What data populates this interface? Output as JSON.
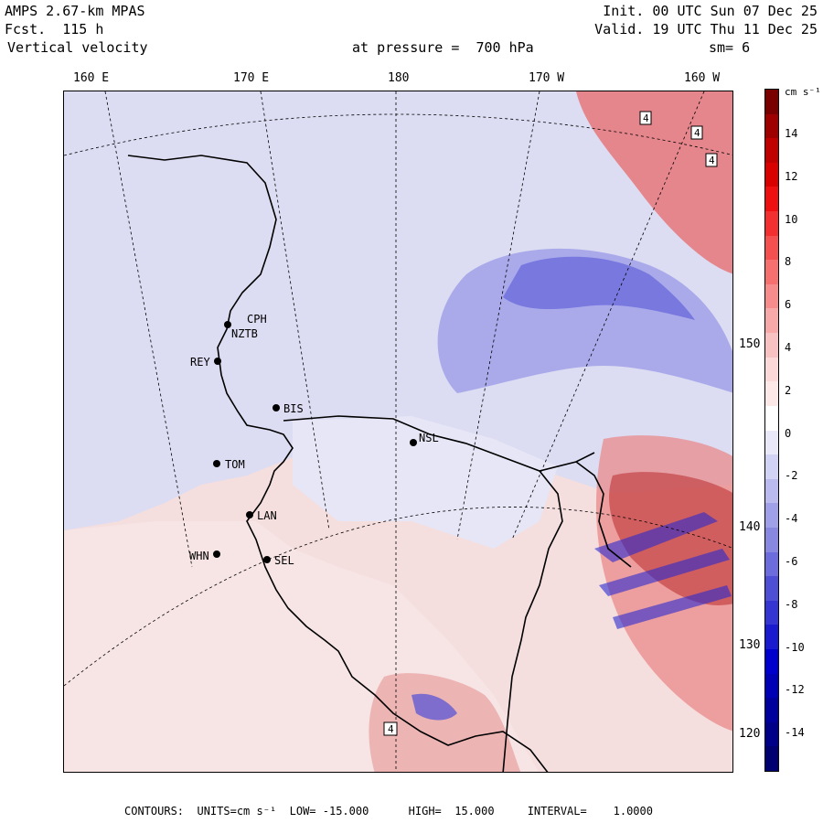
{
  "header": {
    "model": "AMPS 2.67-km MPAS",
    "forecast": "Fcst.  115 h",
    "field": "Vertical velocity",
    "init": "Init. 00 UTC Sun 07 Dec 25",
    "valid": "Valid. 19 UTC Thu 11 Dec 25",
    "pressure": "at pressure =  700 hPa",
    "smoothing": "sm= 6"
  },
  "map": {
    "lon_labels": [
      "160 E",
      "170 E",
      "180",
      "170 W",
      "160 W"
    ],
    "lat_labels": [
      "150 W",
      "140 W",
      "130 W",
      "120 W"
    ],
    "stations": [
      "CPH",
      "NZTB",
      "REY",
      "BIS",
      "TOM",
      "LAN",
      "WHN",
      "SEL",
      "NSL"
    ],
    "contour_box_labels": [
      "4",
      "4",
      "4",
      "4"
    ]
  },
  "colorbar": {
    "units": "cm s⁻¹",
    "ticks": [
      "14",
      "12",
      "10",
      "8",
      "6",
      "4",
      "2",
      "0",
      "-2",
      "-4",
      "-6",
      "-8",
      "-10",
      "-12",
      "-14"
    ],
    "colors_top_to_bottom": [
      "#7a0000",
      "#9e0000",
      "#c00000",
      "#d90000",
      "#ee1010",
      "#f23030",
      "#f45050",
      "#f67070",
      "#f68c8c",
      "#f7a8a8",
      "#f9c2c2",
      "#fbd9d9",
      "#fde8e8",
      "#ffffff",
      "#e8e8f8",
      "#d2d2f4",
      "#babaee",
      "#a0a0e8",
      "#8888e0",
      "#6c6cdc",
      "#4f4fd6",
      "#3535d2",
      "#1a1ace",
      "#0000cc",
      "#0000b4",
      "#00009c",
      "#000088",
      "#000070"
    ]
  },
  "footer": {
    "text": "CONTOURS:  UNITS=cm s⁻¹  LOW= -15.000      HIGH=  15.000     INTERVAL=    1.0000"
  },
  "colors": {
    "land_pink": "#f5dede",
    "ocean_blue": "#dcdcf2",
    "blue_anomaly": "#9a9ae8",
    "red_anomaly": "#e86a6a"
  }
}
